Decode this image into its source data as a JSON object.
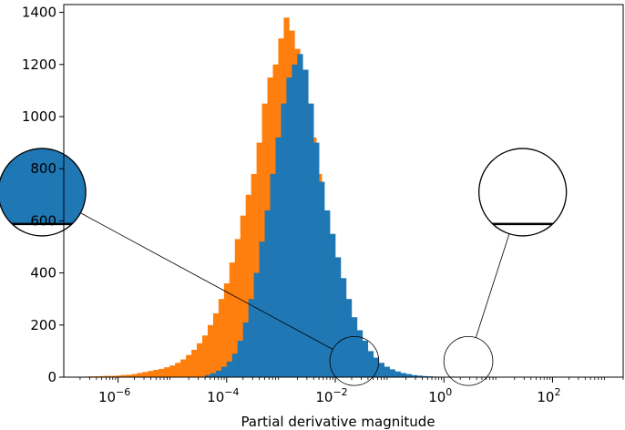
{
  "chart_data": {
    "type": "histogram",
    "xlabel": "Partial derivative magnitude",
    "ylabel": "",
    "x_scale": "log",
    "xlim": [
      1e-07,
      2000
    ],
    "ylim": [
      0,
      1430
    ],
    "grid": false,
    "y_ticks": [
      0,
      200,
      400,
      600,
      800,
      1000,
      1200,
      1400
    ],
    "x_ticks": [
      {
        "base": "10",
        "exp": "−6",
        "value": 1e-06
      },
      {
        "base": "10",
        "exp": "−4",
        "value": 0.0001
      },
      {
        "base": "10",
        "exp": "−2",
        "value": 0.01
      },
      {
        "base": "10",
        "exp": "0",
        "value": 1
      },
      {
        "base": "10",
        "exp": "2",
        "value": 100
      }
    ],
    "series": [
      {
        "color": "#ff7f0e",
        "bin_start_log10": -6.65,
        "bin_width_log10": 0.1,
        "counts": [
          2,
          3,
          3,
          4,
          5,
          5,
          6,
          8,
          9,
          12,
          16,
          20,
          24,
          28,
          32,
          38,
          45,
          55,
          68,
          85,
          105,
          130,
          160,
          200,
          245,
          300,
          360,
          440,
          530,
          620,
          700,
          780,
          900,
          1050,
          1150,
          1200,
          1300,
          1380,
          1330,
          1260,
          1180,
          1050,
          920,
          780,
          620,
          500,
          380,
          290,
          200,
          130,
          85,
          55,
          35,
          22,
          14,
          8,
          5,
          3,
          2,
          1
        ]
      },
      {
        "color": "#1f77b4",
        "bin_start_log10": -4.4,
        "bin_width_log10": 0.1,
        "counts": [
          8,
          15,
          25,
          40,
          60,
          90,
          140,
          210,
          300,
          400,
          520,
          640,
          780,
          920,
          1050,
          1150,
          1200,
          1240,
          1180,
          1050,
          900,
          750,
          640,
          550,
          460,
          380,
          300,
          230,
          180,
          140,
          100,
          75,
          55,
          40,
          30,
          22,
          16,
          12,
          8,
          6,
          4,
          3,
          2,
          1,
          1,
          2,
          1,
          1,
          1,
          1
        ]
      }
    ],
    "inset_circles": [
      {
        "log10_center": -1.65,
        "y_center": 62,
        "zoom": 7,
        "inset_log10_center": -7.4,
        "inset_y_center": 710
      },
      {
        "log10_center": 0.45,
        "y_center": 62,
        "zoom": 7,
        "inset_log10_center": 1.45,
        "inset_y_center": 710
      }
    ]
  }
}
